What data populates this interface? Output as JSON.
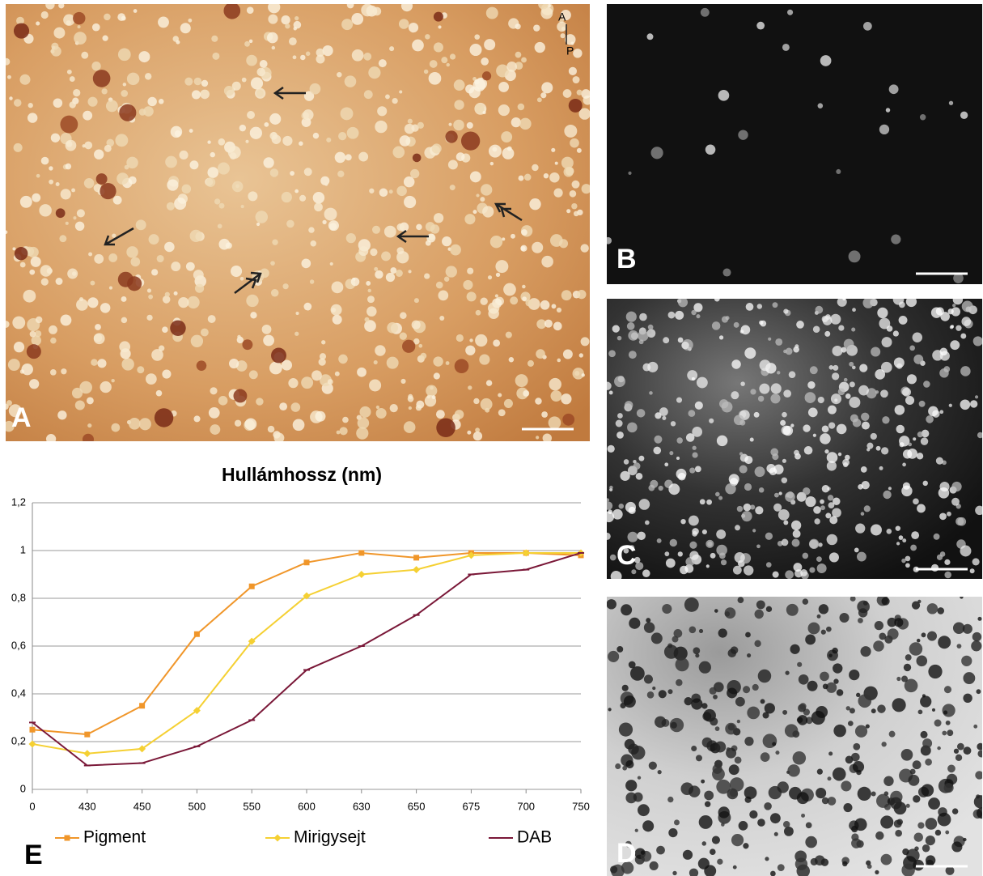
{
  "panel_labels": [
    "A",
    "B",
    "C",
    "D",
    "E"
  ],
  "orientation_label": {
    "anterior": "A",
    "posterior": "P"
  },
  "chart_data": {
    "type": "line",
    "title": "Hullámhossz (nm)",
    "categories": [
      "0",
      "430",
      "450",
      "500",
      "550",
      "600",
      "630",
      "650",
      "675",
      "700",
      "750"
    ],
    "series": [
      {
        "name": "Pigment",
        "color": "#f0962a",
        "marker": "square",
        "values": [
          0.25,
          0.23,
          0.35,
          0.65,
          0.85,
          0.95,
          0.99,
          0.97,
          0.99,
          0.99,
          0.98
        ]
      },
      {
        "name": "Mirigysejt",
        "color": "#f5d033",
        "marker": "diamond",
        "values": [
          0.19,
          0.15,
          0.17,
          0.33,
          0.62,
          0.81,
          0.9,
          0.92,
          0.98,
          0.99,
          0.99
        ]
      },
      {
        "name": "DAB",
        "color": "#7a1838",
        "marker": "dash",
        "values": [
          0.28,
          0.1,
          0.11,
          0.18,
          0.29,
          0.5,
          0.6,
          0.73,
          0.9,
          0.92,
          0.99
        ]
      }
    ],
    "ylim": [
      0,
      1.2
    ],
    "yticks": [
      0,
      {
        "value": 0.2,
        "label": "0,2"
      },
      {
        "value": 0.4,
        "label": "0,4"
      },
      {
        "value": 0.6,
        "label": "0,6"
      },
      {
        "value": 0.8,
        "label": "0,8"
      },
      1,
      {
        "value": 1.2,
        "label": "1,2"
      }
    ],
    "grid": true,
    "legend": "bottom"
  }
}
